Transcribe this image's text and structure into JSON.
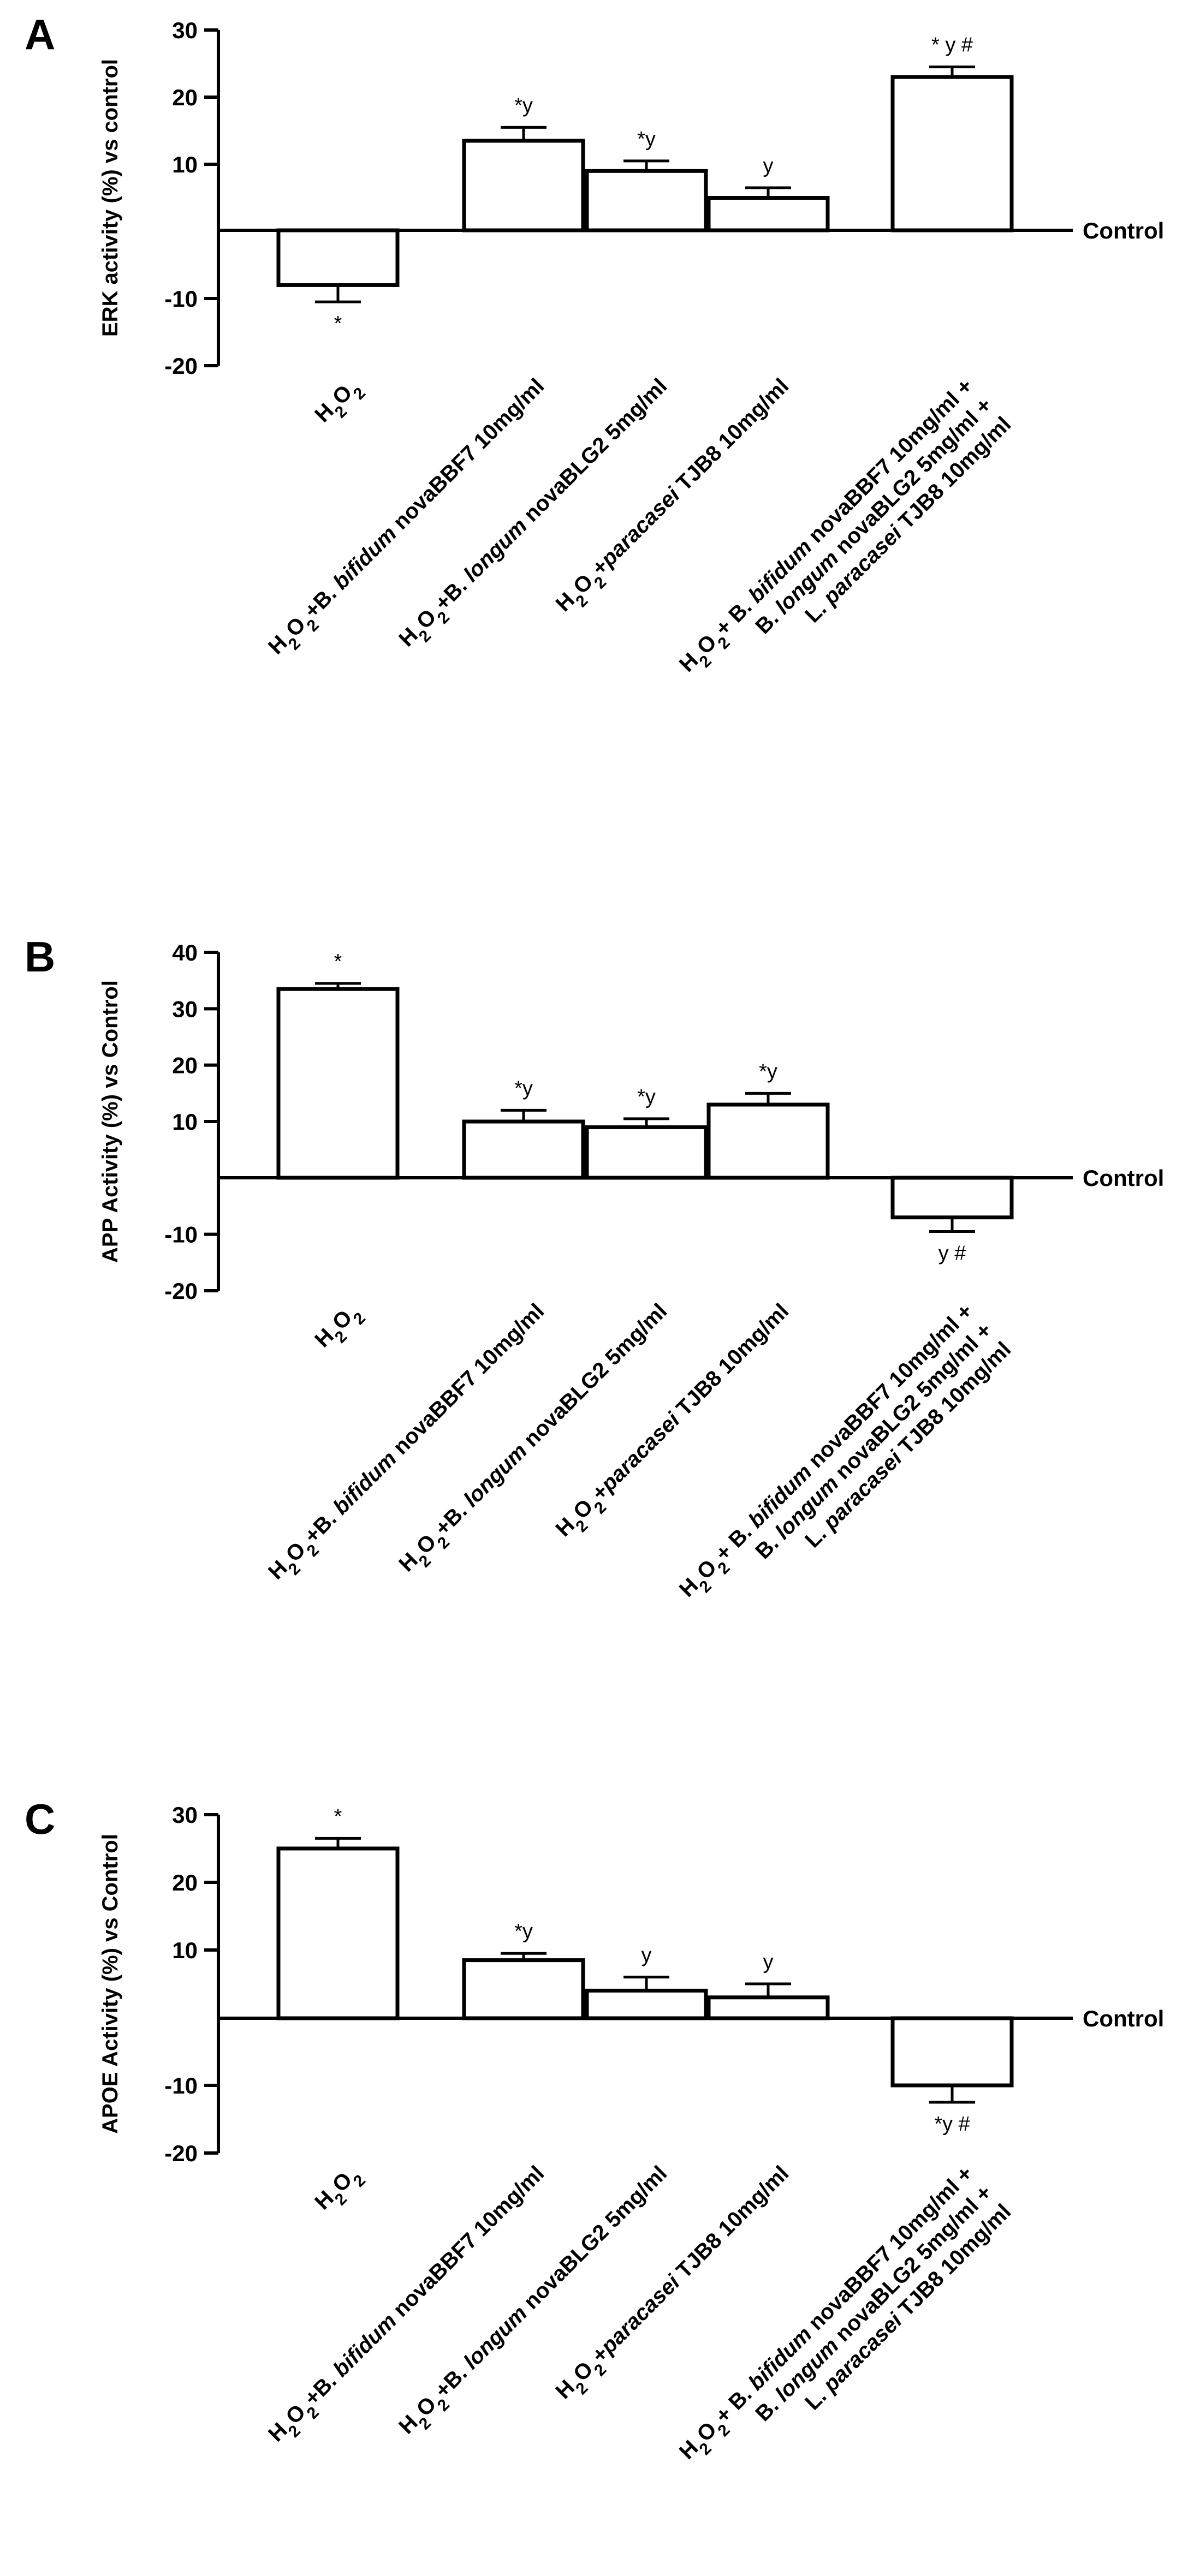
{
  "chart_data": [
    {
      "panel_label": "A",
      "type": "bar",
      "ylabel": "ERK activity (%) vs control",
      "ylim": [
        -20,
        30
      ],
      "yticks": [
        "30",
        "20",
        "10",
        "-10",
        "-20"
      ],
      "baseline_label": "Control",
      "categories": [
        {
          "main": "H",
          "sub": "2",
          "main2": "O",
          "sub2": "2",
          "rest": ""
        },
        {
          "main": "H",
          "sub": "2",
          "main2": "O",
          "sub2": "2",
          "rest": "+B. bifidum novaBBF7 10mg/ml"
        },
        {
          "main": "H",
          "sub": "2",
          "main2": "O",
          "sub2": "2",
          "rest": "+B. longum novaBLG2 5mg/ml"
        },
        {
          "main": "H",
          "sub": "2",
          "main2": "O",
          "sub2": "2",
          "rest": "+paracasei TJB8 10mg/ml"
        },
        {
          "main": "H",
          "sub": "2",
          "main2": "O",
          "sub2": "2",
          "rest": "+ B. bifidum novaBBF7 10mg/ml +",
          "line2": "B. longum novaBLG2 5mg/ml +",
          "line3": "L. paracasei TJB8 10mg/ml"
        }
      ],
      "values": [
        -8,
        13.5,
        9,
        5,
        23
      ],
      "errors": [
        2.5,
        2,
        1.5,
        1.5,
        1.5
      ],
      "annotations": [
        "*",
        "*y",
        "*y",
        "y",
        "* y #"
      ]
    },
    {
      "panel_label": "B",
      "type": "bar",
      "ylabel": "APP Activity (%) vs Control",
      "ylim": [
        -20,
        40
      ],
      "yticks": [
        "40",
        "30",
        "20",
        "10",
        "-10",
        "-20"
      ],
      "baseline_label": "Control",
      "categories": [
        {
          "main": "H",
          "sub": "2",
          "main2": "O",
          "sub2": "2",
          "rest": ""
        },
        {
          "main": "H",
          "sub": "2",
          "main2": "O",
          "sub2": "2",
          "rest": "+B. bifidum novaBBF7 10mg/ml"
        },
        {
          "main": "H",
          "sub": "2",
          "main2": "O",
          "sub2": "2",
          "rest": "+B. longum novaBLG2 5mg/ml"
        },
        {
          "main": "H",
          "sub": "2",
          "main2": "O",
          "sub2": "2",
          "rest": "+paracasei TJB8 10mg/ml"
        },
        {
          "main": "H",
          "sub": "2",
          "main2": "O",
          "sub2": "2",
          "rest": "+ B. bifidum novaBBF7 10mg/ml +",
          "line2": "B. longum novaBLG2 5mg/ml +",
          "line3": "L. paracasei TJB8 10mg/ml"
        }
      ],
      "values": [
        33.5,
        10,
        9,
        13,
        -7
      ],
      "errors": [
        1,
        2,
        1.5,
        2,
        2.5
      ],
      "annotations": [
        "*",
        "*y",
        "*y",
        "*y",
        "y #"
      ]
    },
    {
      "panel_label": "C",
      "type": "bar",
      "ylabel": "APOE Activity (%) vs Control",
      "ylim": [
        -20,
        30
      ],
      "yticks": [
        "30",
        "20",
        "10",
        "-10",
        "-20"
      ],
      "baseline_label": "Control",
      "categories": [
        {
          "main": "H",
          "sub": "2",
          "main2": "O",
          "sub2": "2",
          "rest": ""
        },
        {
          "main": "H",
          "sub": "2",
          "main2": "O",
          "sub2": "2",
          "rest": "+B. bifidum novaBBF7 10mg/ml"
        },
        {
          "main": "H",
          "sub": "2",
          "main2": "O",
          "sub2": "2",
          "rest": "+B. longum novaBLG2 5mg/ml"
        },
        {
          "main": "H",
          "sub": "2",
          "main2": "O",
          "sub2": "2",
          "rest": "+paracasei TJB8 10mg/ml"
        },
        {
          "main": "H",
          "sub": "2",
          "main2": "O",
          "sub2": "2",
          "rest": "+ B. bifidum novaBBF7 10mg/ml +",
          "line2": "B. longum novaBLG2 5mg/ml +",
          "line3": "L. paracasei TJB8 10mg/ml"
        }
      ],
      "values": [
        25,
        8.5,
        4,
        3,
        -10
      ],
      "errors": [
        1.5,
        1,
        2,
        2,
        2.5
      ],
      "annotations": [
        "*",
        "*y",
        "y",
        "y",
        "*y #"
      ]
    }
  ]
}
